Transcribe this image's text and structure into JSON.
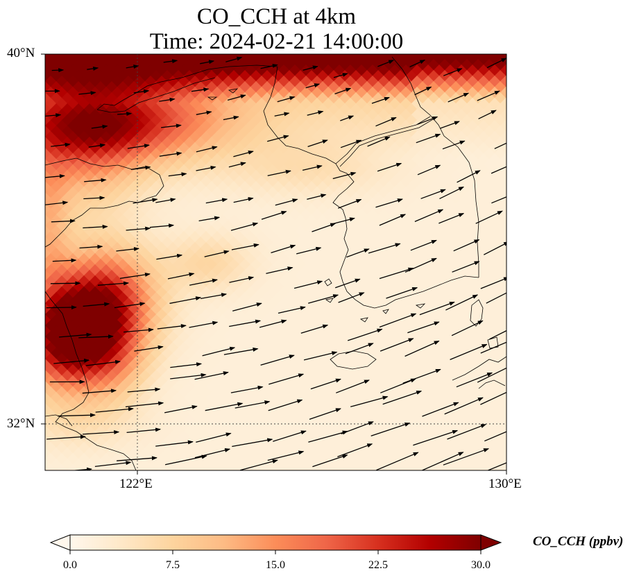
{
  "title_line1": "CO_CCH at 4km",
  "title_line2": "Time: 2024-02-21 14:00:00",
  "lat_ticks": [
    "40°N",
    "32°N"
  ],
  "lon_ticks": [
    "122°E",
    "130°E"
  ],
  "colorbar": {
    "label": "CO_CCH (ppbv)",
    "ticks": [
      "0.0",
      "7.5",
      "15.0",
      "22.5",
      "30.0"
    ],
    "colormap": "OrRd",
    "extend": "both",
    "stops": [
      "#fff7ec",
      "#fee8c8",
      "#fdd49e",
      "#fdbb84",
      "#fc8d59",
      "#ef6548",
      "#d7301f",
      "#b30000",
      "#7f0000"
    ]
  },
  "map_extent": {
    "lon": [
      120,
      130
    ],
    "lat": [
      31,
      40
    ]
  },
  "gridlines": {
    "lons": [
      122
    ],
    "lats": [
      32
    ],
    "style": "dotted"
  }
}
